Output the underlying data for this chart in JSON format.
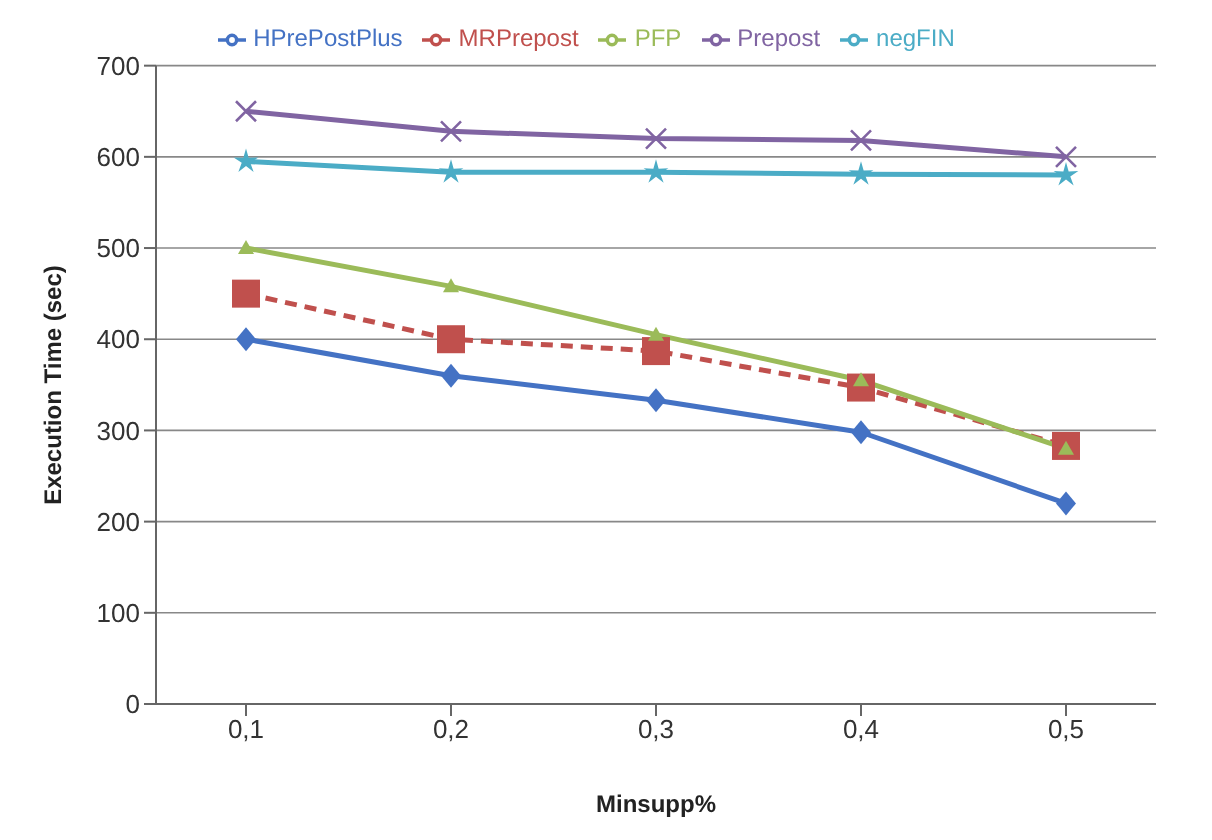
{
  "chart_data": {
    "type": "line",
    "categories": [
      "0,1",
      "0,2",
      "0,3",
      "0,4",
      "0,5"
    ],
    "xlabel": "Minsupp%",
    "ylabel": "Execution Time (sec)",
    "ylim": [
      0,
      700
    ],
    "yticks": [
      0,
      100,
      200,
      300,
      400,
      500,
      600,
      700
    ],
    "grid": "y",
    "legend": "top",
    "series": [
      {
        "name": "HPrePostPlus",
        "color": "#4472c4",
        "marker": "diamond",
        "line_style": "solid",
        "values": [
          400,
          360,
          333,
          298,
          220
        ]
      },
      {
        "name": "MRPrepost",
        "color": "#c0504d",
        "marker": "square",
        "line_style": "dashed",
        "values": [
          450,
          400,
          387,
          347,
          283
        ]
      },
      {
        "name": "PFP",
        "color": "#9bbb59",
        "marker": "triangle",
        "line_style": "solid",
        "values": [
          500,
          458,
          405,
          355,
          280
        ]
      },
      {
        "name": "Prepost",
        "color": "#8064a2",
        "marker": "cross",
        "line_style": "solid",
        "values": [
          650,
          628,
          620,
          618,
          600
        ]
      },
      {
        "name": "negFIN",
        "color": "#4bacc6",
        "marker": "star",
        "line_style": "solid",
        "values": [
          595,
          583,
          583,
          581,
          580
        ]
      }
    ]
  }
}
